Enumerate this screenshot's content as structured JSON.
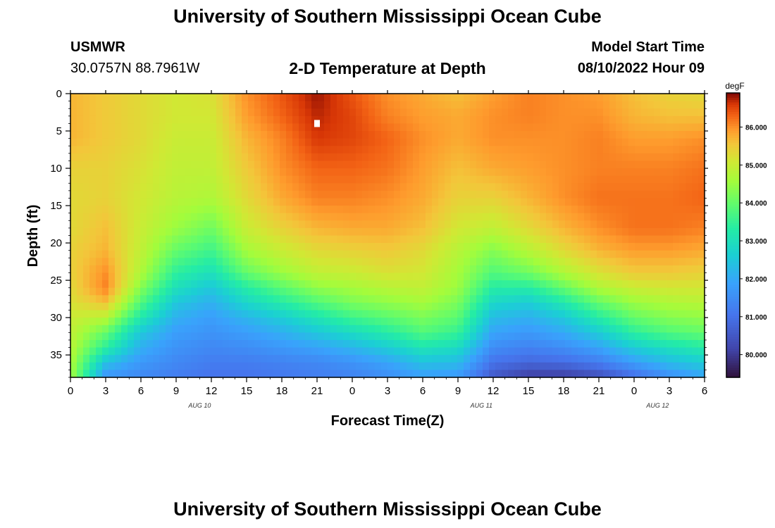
{
  "page": {
    "title_top": "University of Southern Mississippi Ocean Cube",
    "title_bottom": "University of Southern Mississippi Ocean Cube",
    "station_name": "USMWR",
    "station_coords": "30.0757N  88.7961W",
    "model_start_label": "Model Start Time",
    "model_start_value": "08/10/2022 Hour 09"
  },
  "chart_data": {
    "type": "heatmap",
    "title": "2-D Temperature at Depth",
    "xlabel": "Forecast Time(Z)",
    "ylabel": "Depth (ft)",
    "x_ticks": [
      "0",
      "3",
      "6",
      "9",
      "12",
      "15",
      "18",
      "21",
      "0",
      "3",
      "6",
      "9",
      "12",
      "15",
      "18",
      "21",
      "0",
      "3",
      "6"
    ],
    "x_range_hours": [
      0,
      54
    ],
    "date_labels": [
      {
        "text": "AUG 10",
        "hour": 11
      },
      {
        "text": "AUG 11",
        "hour": 35
      },
      {
        "text": "AUG 12",
        "hour": 50
      }
    ],
    "y_ticks": [
      0,
      5,
      10,
      15,
      20,
      25,
      30,
      35
    ],
    "y_range_ft": [
      0,
      38
    ],
    "colorbar": {
      "unit": "degF",
      "ticks": [
        "80.000",
        "81.000",
        "82.000",
        "83.000",
        "84.000",
        "85.000",
        "86.000"
      ],
      "range": [
        79.4,
        86.9
      ]
    },
    "grid_times_hours": [
      0,
      3,
      6,
      9,
      12,
      15,
      18,
      21,
      24,
      27,
      30,
      33,
      36,
      39,
      42,
      45,
      48,
      51,
      54
    ],
    "grid_depths_ft": [
      0,
      3,
      6,
      10,
      14,
      18,
      21,
      24,
      26,
      28,
      30,
      32,
      34,
      36,
      38
    ],
    "temperature_degF": [
      [
        85.7,
        85.7,
        85.7,
        85.4,
        85.3,
        85.3,
        85.4,
        85.4,
        85.3,
        85.2,
        85.0,
        84.9,
        84.8,
        84.7,
        84.6
      ],
      [
        85.5,
        85.5,
        85.5,
        85.4,
        85.4,
        85.6,
        85.7,
        86.0,
        86.1,
        85.6,
        84.8,
        84.0,
        83.4,
        82.4,
        81.6
      ],
      [
        85.3,
        85.3,
        85.3,
        85.2,
        85.1,
        85.0,
        84.9,
        84.7,
        84.3,
        83.8,
        83.2,
        82.5,
        82.1,
        81.7,
        81.4
      ],
      [
        85.1,
        85.1,
        85.0,
        84.9,
        84.8,
        84.5,
        84.0,
        83.4,
        83.0,
        82.5,
        82.1,
        81.8,
        81.6,
        81.4,
        81.2
      ],
      [
        85.2,
        85.1,
        85.0,
        84.9,
        84.7,
        84.1,
        83.6,
        83.0,
        82.5,
        82.1,
        81.8,
        81.6,
        81.4,
        81.2,
        81.0
      ],
      [
        86.0,
        85.9,
        85.7,
        85.5,
        85.3,
        85.0,
        84.6,
        84.0,
        83.3,
        82.8,
        82.2,
        81.8,
        81.5,
        81.2,
        81.0
      ],
      [
        86.4,
        86.3,
        86.1,
        86.0,
        85.8,
        85.4,
        85.0,
        84.5,
        83.9,
        83.3,
        82.6,
        82.1,
        81.7,
        81.3,
        81.1
      ],
      [
        86.8,
        86.7,
        86.6,
        86.3,
        86.1,
        85.7,
        85.3,
        84.9,
        84.4,
        83.8,
        83.1,
        82.5,
        81.9,
        81.4,
        81.2
      ],
      [
        86.4,
        86.5,
        86.5,
        86.3,
        86.1,
        85.8,
        85.4,
        85.0,
        84.6,
        84.2,
        83.6,
        82.9,
        82.2,
        81.6,
        81.3
      ],
      [
        86.0,
        86.1,
        86.3,
        86.2,
        86.0,
        85.8,
        85.5,
        85.2,
        84.8,
        84.4,
        83.9,
        83.3,
        82.6,
        81.9,
        81.5
      ],
      [
        85.8,
        85.9,
        86.0,
        85.9,
        85.8,
        85.6,
        85.3,
        85.1,
        84.9,
        84.6,
        84.2,
        83.8,
        83.1,
        82.4,
        81.8
      ],
      [
        85.6,
        85.8,
        85.8,
        85.6,
        85.4,
        85.1,
        84.8,
        84.6,
        84.5,
        84.2,
        83.9,
        83.5,
        82.9,
        82.3,
        81.7
      ],
      [
        85.9,
        86.0,
        86.0,
        85.8,
        85.4,
        84.9,
        84.3,
        83.8,
        83.3,
        82.8,
        82.3,
        81.9,
        81.5,
        81.0,
        80.5
      ],
      [
        86.1,
        86.1,
        86.0,
        85.9,
        85.7,
        85.3,
        84.8,
        84.1,
        83.3,
        82.6,
        82.1,
        81.7,
        81.3,
        80.8,
        80.0
      ],
      [
        86.0,
        86.0,
        86.0,
        86.0,
        86.0,
        85.7,
        85.3,
        84.7,
        84.0,
        83.2,
        82.5,
        82.0,
        81.5,
        80.9,
        80.0
      ],
      [
        85.9,
        86.0,
        86.1,
        86.1,
        86.2,
        86.0,
        85.7,
        85.2,
        84.7,
        84.0,
        83.3,
        82.6,
        81.9,
        81.2,
        80.3
      ],
      [
        85.6,
        85.7,
        85.9,
        86.1,
        86.2,
        86.2,
        85.9,
        85.5,
        85.0,
        84.5,
        84.0,
        83.4,
        82.6,
        81.8,
        80.9
      ],
      [
        85.4,
        85.6,
        85.9,
        86.1,
        86.2,
        86.2,
        85.9,
        85.5,
        85.1,
        84.7,
        84.3,
        83.8,
        83.0,
        82.3,
        81.5
      ],
      [
        85.3,
        85.6,
        86.0,
        86.2,
        86.3,
        86.1,
        85.8,
        85.4,
        85.1,
        84.8,
        84.4,
        84.0,
        83.3,
        82.6,
        81.9
      ]
    ],
    "marker": {
      "hour": 21,
      "depth_ft": 4
    }
  }
}
